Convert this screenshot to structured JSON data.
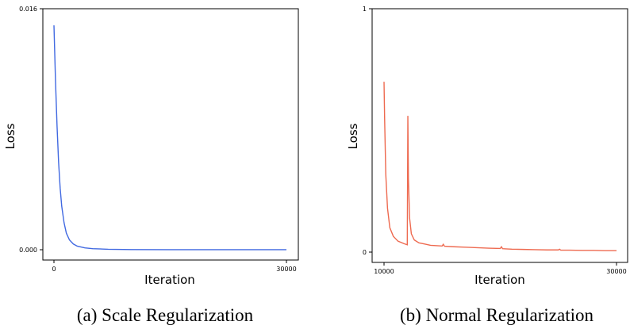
{
  "chart_data": [
    {
      "type": "line",
      "xlabel": "Iteration",
      "ylabel": "Loss",
      "xlim": [
        0,
        30000
      ],
      "ylim": [
        0,
        0.016
      ],
      "xticks": [
        "0",
        "30000"
      ],
      "yticks": [
        "0.000",
        "0.016"
      ],
      "ytick_labels_top": "0.016",
      "ytick_labels_bottom": "0.000",
      "xtick_labels_left": "0",
      "xtick_labels_right": "30000",
      "caption": "(a) Scale Regularization",
      "color": "#4169e1",
      "series": [
        {
          "x": [
            0,
            200,
            400,
            600,
            800,
            1000,
            1300,
            1600,
            2000,
            2500,
            3000,
            4000,
            5000,
            7000,
            10000,
            15000,
            20000,
            25000,
            30000
          ],
          "values": [
            0.0149,
            0.0112,
            0.0082,
            0.0058,
            0.0041,
            0.0029,
            0.0018,
            0.0011,
            0.00065,
            0.00038,
            0.00024,
            0.00012,
            7e-05,
            3e-05,
            1e-05,
            5e-06,
            3e-06,
            2e-06,
            1e-06
          ]
        }
      ]
    },
    {
      "type": "line",
      "xlabel": "Iteration",
      "ylabel": "Loss",
      "xlim": [
        10000,
        30000
      ],
      "ylim": [
        0,
        1
      ],
      "xticks": [
        "10000",
        "30000"
      ],
      "yticks": [
        "0",
        "1"
      ],
      "ytick_labels_top": "1",
      "ytick_labels_bottom": "0",
      "xtick_labels_left": "10000",
      "xtick_labels_right": "30000",
      "caption": "(b) Normal Regularization",
      "color": "#ee6a50",
      "series": [
        {
          "x": [
            10000,
            10050,
            10150,
            10300,
            10500,
            10800,
            11200,
            11700,
            12000,
            12050,
            12100,
            12200,
            12350,
            12600,
            13000,
            13500,
            14000,
            15000,
            15100,
            15200,
            16000,
            17000,
            18000,
            19000,
            20000,
            20100,
            20200,
            21000,
            22000,
            23000,
            24000,
            25000,
            25100,
            25200,
            26000,
            27000,
            28000,
            29000,
            30000
          ],
          "values": [
            0.7,
            0.55,
            0.32,
            0.18,
            0.1,
            0.065,
            0.045,
            0.035,
            0.03,
            0.56,
            0.3,
            0.14,
            0.075,
            0.05,
            0.038,
            0.033,
            0.028,
            0.025,
            0.032,
            0.024,
            0.022,
            0.02,
            0.018,
            0.016,
            0.015,
            0.022,
            0.014,
            0.012,
            0.011,
            0.01,
            0.009,
            0.009,
            0.012,
            0.008,
            0.008,
            0.007,
            0.007,
            0.006,
            0.006
          ]
        }
      ]
    }
  ]
}
